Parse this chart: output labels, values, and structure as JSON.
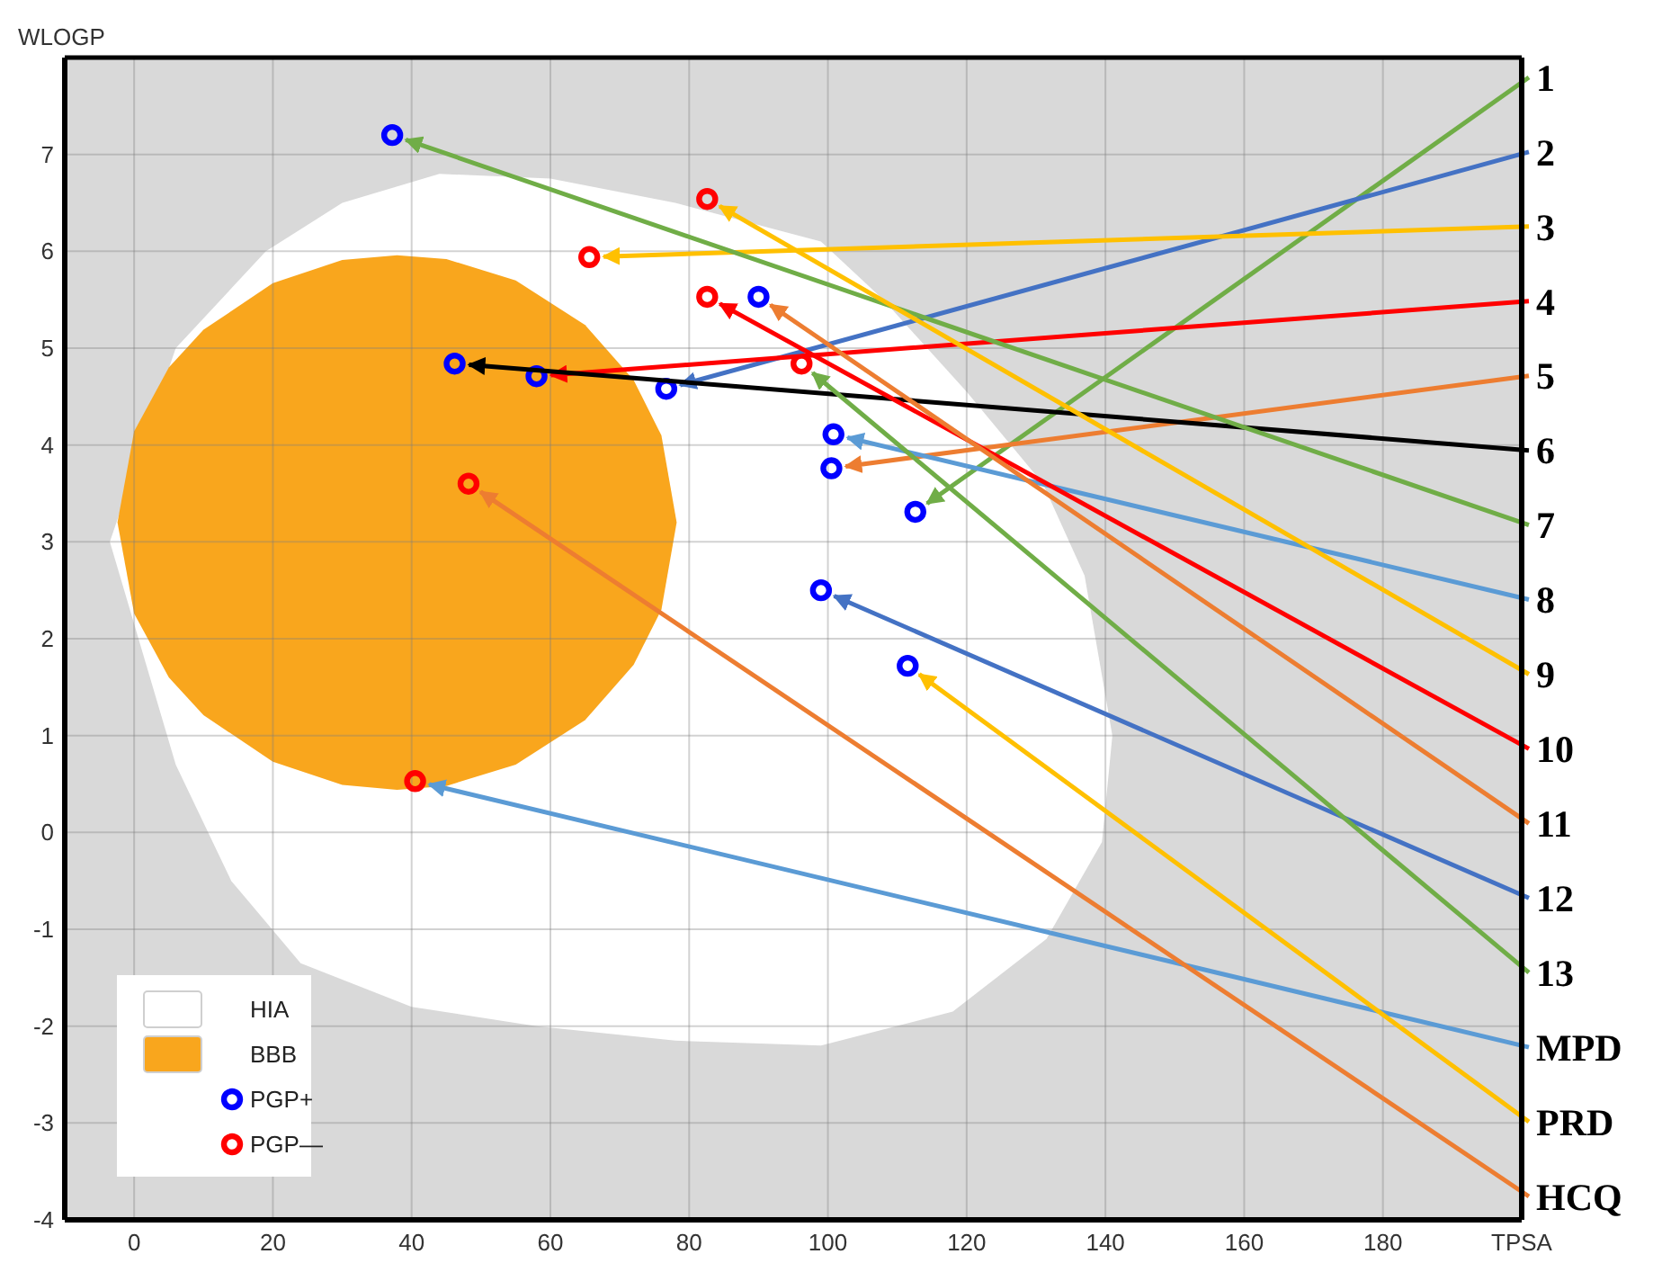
{
  "chart_data": {
    "type": "scatter",
    "xlabel": "TPSA",
    "ylabel": "WLOGP",
    "xlim": [
      -10,
      200
    ],
    "ylim": [
      -4,
      8
    ],
    "xticks": [
      0,
      20,
      40,
      60,
      80,
      100,
      120,
      140,
      160,
      180
    ],
    "yticks": [
      -4,
      -3,
      -2,
      -1,
      0,
      1,
      2,
      3,
      4,
      5,
      6,
      7
    ],
    "grid": true,
    "legend": "bottom left",
    "series": [
      {
        "name": "HIA",
        "type": "area",
        "color": "#ffffff",
        "x": [
          -3.5,
          6,
          19,
          30,
          44,
          60,
          78,
          99,
          108,
          120,
          131,
          137,
          141,
          139.5,
          131.5,
          118,
          99,
          78,
          58,
          40,
          24,
          14,
          6
        ],
        "values": [
          3.0,
          5.0,
          6.0,
          6.5,
          6.8,
          6.75,
          6.5,
          6.1,
          5.5,
          4.55,
          3.6,
          2.65,
          1.0,
          -0.1,
          -1.1,
          -1.85,
          -2.2,
          -2.15,
          -2.0,
          -1.8,
          -1.35,
          -0.5,
          0.7
        ]
      },
      {
        "name": "BBB",
        "type": "area",
        "color": "#f9a61d",
        "x": [
          -2.4,
          0,
          5,
          10,
          20,
          30,
          37.9,
          45,
          55,
          65,
          72,
          76,
          78.2,
          76,
          72,
          65,
          55,
          45,
          37.9,
          30,
          20,
          10,
          5,
          0
        ],
        "values": [
          3.2,
          4.14,
          4.8,
          5.19,
          5.67,
          5.91,
          5.96,
          5.92,
          5.7,
          5.24,
          4.67,
          4.1,
          3.2,
          2.3,
          1.73,
          1.16,
          0.7,
          0.48,
          0.44,
          0.49,
          0.73,
          1.21,
          1.6,
          2.26
        ]
      },
      {
        "name": "PGP+",
        "marker": "circle",
        "color": "#0000ff",
        "x": [
          37.2,
          46.2,
          58,
          76.7,
          90,
          100.8,
          100.5,
          112.6,
          99,
          111.5
        ],
        "values": [
          7.2,
          4.84,
          4.71,
          4.58,
          5.53,
          4.11,
          3.76,
          3.31,
          2.5,
          1.72
        ]
      },
      {
        "name": "PGP—",
        "marker": "circle",
        "color": "#ff0000",
        "x": [
          82.6,
          65.6,
          82.6,
          96.2,
          48.2,
          40.5
        ],
        "values": [
          6.54,
          5.94,
          5.53,
          4.84,
          3.6,
          0.53
        ]
      }
    ],
    "annotations": [
      {
        "text": "1",
        "x": 112.6,
        "y": 3.31
      },
      {
        "text": "2",
        "x": 76.7,
        "y": 4.58
      },
      {
        "text": "3",
        "x": 65.6,
        "y": 5.94
      },
      {
        "text": "4",
        "x": 58,
        "y": 4.71
      },
      {
        "text": "5",
        "x": 100.5,
        "y": 3.76
      },
      {
        "text": "6",
        "x": 46.2,
        "y": 4.84
      },
      {
        "text": "7",
        "x": 37.2,
        "y": 7.2
      },
      {
        "text": "8",
        "x": 100.8,
        "y": 4.11
      },
      {
        "text": "9",
        "x": 82.6,
        "y": 6.54
      },
      {
        "text": "10",
        "x": 82.6,
        "y": 5.53
      },
      {
        "text": "11",
        "x": 90,
        "y": 5.53
      },
      {
        "text": "12",
        "x": 99,
        "y": 2.5
      },
      {
        "text": "13",
        "x": 96.2,
        "y": 4.84
      },
      {
        "text": "MPD",
        "x": 40.5,
        "y": 0.53
      },
      {
        "text": "PRD",
        "x": 111.5,
        "y": 1.72
      },
      {
        "text": "HCQ",
        "x": 48.2,
        "y": 3.6
      }
    ]
  }
}
